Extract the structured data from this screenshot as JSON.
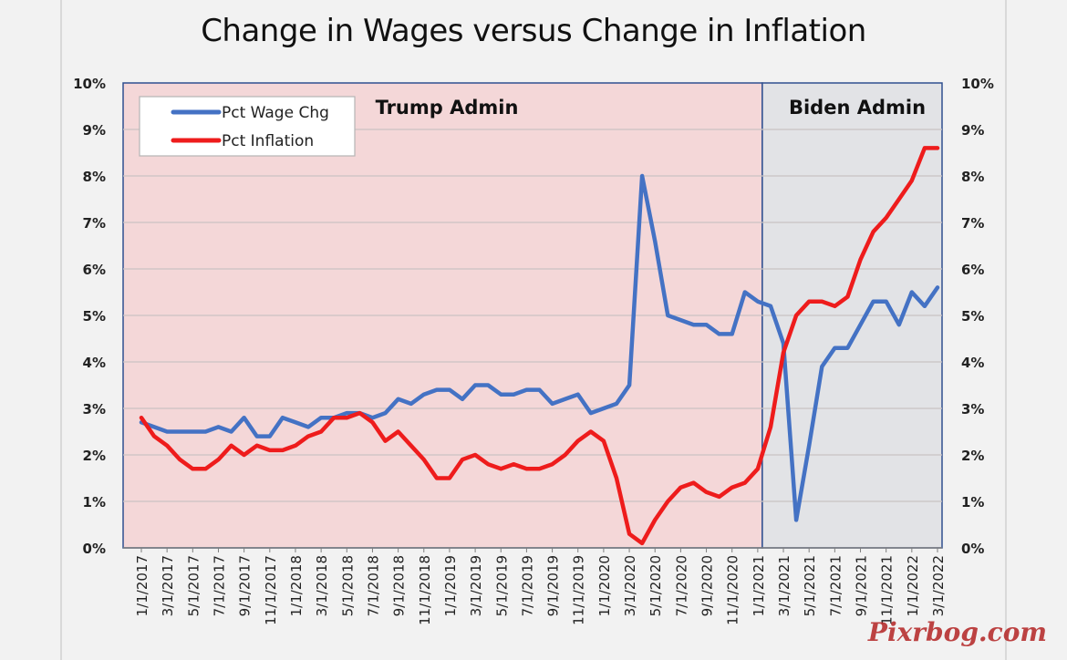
{
  "chart_data": {
    "type": "line",
    "title": "Change in Wages versus Change in Inflation",
    "ylim": [
      0,
      10
    ],
    "y_ticks": [
      "0%",
      "1%",
      "2%",
      "3%",
      "4%",
      "5%",
      "6%",
      "7%",
      "8%",
      "9%",
      "10%"
    ],
    "x_tick_labels": [
      "1/1/2017",
      "3/1/2017",
      "5/1/2017",
      "7/1/2017",
      "9/1/2017",
      "11/1/2017",
      "1/1/2018",
      "3/1/2018",
      "5/1/2018",
      "7/1/2018",
      "9/1/2018",
      "11/1/2018",
      "1/1/2019",
      "3/1/2019",
      "5/1/2019",
      "7/1/2019",
      "9/1/2019",
      "11/1/2019",
      "1/1/2020",
      "3/1/2020",
      "5/1/2020",
      "7/1/2020",
      "9/1/2020",
      "11/1/2020",
      "1/1/2021",
      "3/1/2021",
      "5/1/2021",
      "7/1/2021",
      "9/1/2021",
      "11/1/2021",
      "1/1/2022",
      "3/1/2022"
    ],
    "x": [
      "1/1/2017",
      "2/1/2017",
      "3/1/2017",
      "4/1/2017",
      "5/1/2017",
      "6/1/2017",
      "7/1/2017",
      "8/1/2017",
      "9/1/2017",
      "10/1/2017",
      "11/1/2017",
      "12/1/2017",
      "1/1/2018",
      "2/1/2018",
      "3/1/2018",
      "4/1/2018",
      "5/1/2018",
      "6/1/2018",
      "7/1/2018",
      "8/1/2018",
      "9/1/2018",
      "10/1/2018",
      "11/1/2018",
      "12/1/2018",
      "1/1/2019",
      "2/1/2019",
      "3/1/2019",
      "4/1/2019",
      "5/1/2019",
      "6/1/2019",
      "7/1/2019",
      "8/1/2019",
      "9/1/2019",
      "10/1/2019",
      "11/1/2019",
      "12/1/2019",
      "1/1/2020",
      "2/1/2020",
      "3/1/2020",
      "4/1/2020",
      "5/1/2020",
      "6/1/2020",
      "7/1/2020",
      "8/1/2020",
      "9/1/2020",
      "10/1/2020",
      "11/1/2020",
      "12/1/2020",
      "1/1/2021",
      "2/1/2021",
      "3/1/2021",
      "4/1/2021",
      "5/1/2021",
      "6/1/2021",
      "7/1/2021",
      "8/1/2021",
      "9/1/2021",
      "10/1/2021",
      "11/1/2021",
      "12/1/2021",
      "1/1/2022",
      "2/1/2022",
      "3/1/2022"
    ],
    "series": [
      {
        "name": "Pct Wage Chg",
        "color": "#4472c4",
        "values": [
          2.7,
          2.6,
          2.5,
          2.5,
          2.5,
          2.5,
          2.6,
          2.5,
          2.8,
          2.4,
          2.4,
          2.8,
          2.7,
          2.6,
          2.8,
          2.8,
          2.9,
          2.9,
          2.8,
          2.9,
          3.2,
          3.1,
          3.3,
          3.4,
          3.4,
          3.2,
          3.5,
          3.5,
          3.3,
          3.3,
          3.4,
          3.4,
          3.1,
          3.2,
          3.3,
          2.9,
          3.0,
          3.1,
          3.5,
          8.0,
          6.6,
          5.0,
          4.9,
          4.8,
          4.8,
          4.6,
          4.6,
          5.5,
          5.3,
          5.2,
          4.4,
          0.6,
          2.2,
          3.9,
          4.3,
          4.3,
          4.8,
          5.3,
          5.3,
          4.8,
          5.5,
          5.2,
          5.6
        ]
      },
      {
        "name": "Pct Inflation",
        "color": "#ee1c1c",
        "values": [
          2.8,
          2.4,
          2.2,
          1.9,
          1.7,
          1.7,
          1.9,
          2.2,
          2.0,
          2.2,
          2.1,
          2.1,
          2.2,
          2.4,
          2.5,
          2.8,
          2.8,
          2.9,
          2.7,
          2.3,
          2.5,
          2.2,
          1.9,
          1.5,
          1.5,
          1.9,
          2.0,
          1.8,
          1.7,
          1.8,
          1.7,
          1.7,
          1.8,
          2.0,
          2.3,
          2.5,
          2.3,
          1.5,
          0.3,
          0.1,
          0.6,
          1.0,
          1.3,
          1.4,
          1.2,
          1.1,
          1.3,
          1.4,
          1.7,
          2.6,
          4.2,
          5.0,
          5.3,
          5.3,
          5.2,
          5.4,
          6.2,
          6.8,
          7.1,
          7.5,
          7.9,
          8.6,
          8.6
        ]
      }
    ],
    "regions": [
      {
        "label": "Trump Admin",
        "from": "1/1/2017",
        "to": "1/1/2021",
        "color": "#f4d7d8"
      },
      {
        "label": "Biden Admin",
        "from": "1/1/2021",
        "to": "3/1/2022",
        "color": "#e2e3e6"
      }
    ],
    "grid": true,
    "legend_position": "top-left"
  },
  "watermark": "Pixrbog.com"
}
